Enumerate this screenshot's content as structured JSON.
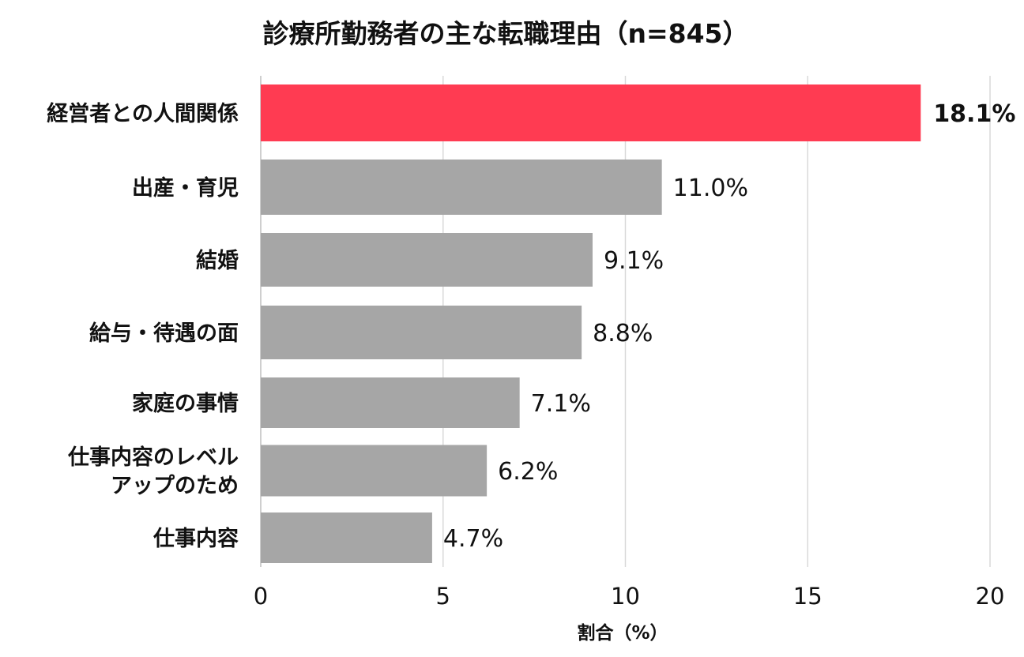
{
  "chart_data": {
    "type": "bar",
    "orientation": "horizontal",
    "title": "診療所勤務者の主な転職理由（n=845）",
    "xlabel": "割合（%）",
    "ylabel": "",
    "xlim": [
      0,
      20
    ],
    "xticks": [
      "0",
      "5",
      "10",
      "15",
      "20"
    ],
    "grid": true,
    "categories": [
      [
        "経営者との人間関係"
      ],
      [
        "出産・育児"
      ],
      [
        "結婚"
      ],
      [
        "給与・待遇の面"
      ],
      [
        "家庭の事情"
      ],
      [
        "仕事内容のレベル",
        "アップのため"
      ],
      [
        "仕事内容"
      ]
    ],
    "values": [
      18.1,
      11.0,
      9.1,
      8.8,
      7.1,
      6.2,
      4.7
    ],
    "value_labels": [
      "18.1%",
      "11.0%",
      "9.1%",
      "8.8%",
      "7.1%",
      "6.2%",
      "4.7%"
    ],
    "highlight_index": 0,
    "colors": {
      "highlight": "#ff3b52",
      "default": "#a6a6a6"
    }
  }
}
